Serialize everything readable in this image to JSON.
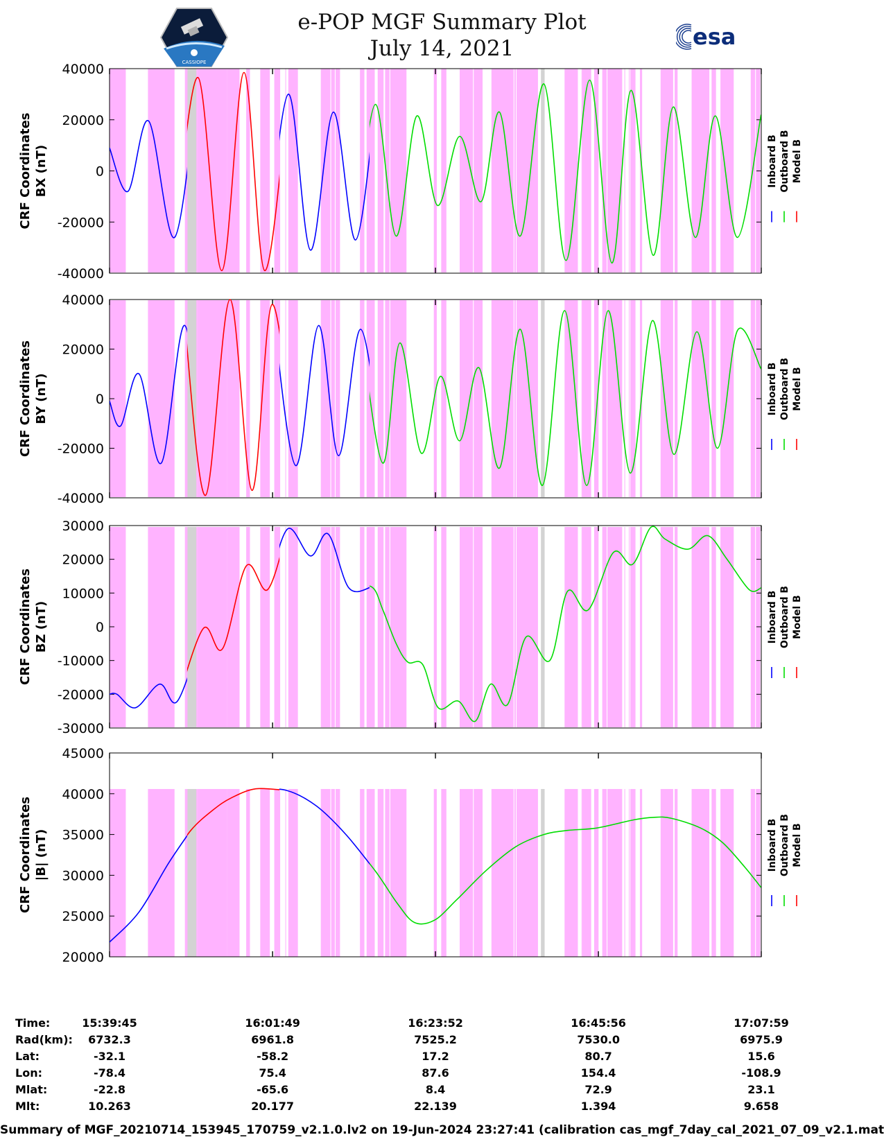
{
  "header": {
    "title_line1": "e-POP MGF Summary Plot",
    "title_line2": "July 14, 2021",
    "esa_logo_text": "esa",
    "cassiope_logo_text": "CASSIOPE"
  },
  "footer": {
    "text": "Summary of MGF_20210714_153945_170759_v2.1.0.lv2 on 19-Jun-2024 23:27:41 (calibration cas_mgf_7day_cal_2021_07_09_v2.1.mat )"
  },
  "colors": {
    "inboard": "#0000ff",
    "outboard": "#00dd00",
    "model": "#ff0000",
    "shade_pink": "#ffb3ff",
    "shade_gray": "#d3d3d3"
  },
  "tick_table": {
    "row_labels": [
      "Time:",
      "Rad(km):",
      "Lat:",
      "Lon:",
      "Mlat:",
      "Mlt:"
    ],
    "columns": [
      [
        "15:39:45",
        "6732.3",
        "-32.1",
        "-78.4",
        "-22.8",
        "10.263"
      ],
      [
        "16:01:49",
        "6961.8",
        "-58.2",
        "75.4",
        "-65.6",
        "20.177"
      ],
      [
        "16:23:52",
        "7525.2",
        "17.2",
        "87.6",
        "8.4",
        "22.139"
      ],
      [
        "16:45:56",
        "7530.0",
        "80.7",
        "154.4",
        "72.9",
        "1.394"
      ],
      [
        "17:07:59",
        "6975.9",
        "15.6",
        "-108.9",
        "23.1",
        "9.658"
      ]
    ]
  },
  "chart_data": [
    {
      "type": "line",
      "title": "CRF Coordinates BX (nT)",
      "ylabel_line1": "CRF Coordinates",
      "ylabel_line2": "BX (nT)",
      "legend": [
        "Inboard B",
        "Outboard B",
        "Model B"
      ],
      "ylim": [
        -40000,
        40000
      ],
      "yticks": [
        40000,
        20000,
        0,
        -20000,
        -40000
      ],
      "ytick_labels": [
        "40000",
        "20000",
        "0",
        "-20000",
        "-40000"
      ],
      "x_minutes": [
        0,
        2.5,
        5.3,
        8.8,
        12.0,
        15.2,
        18.2,
        21.0,
        24.2,
        27.2,
        30.3,
        33.3,
        36.0,
        38.8,
        41.6,
        44.4,
        47.4,
        50.3,
        52.8,
        55.6,
        58.8,
        61.8,
        65.0,
        68.0,
        70.6,
        73.6,
        76.3,
        79.3,
        82.0,
        85.0,
        88.2
      ],
      "values": [
        9000,
        -8000,
        19500,
        -26000,
        36500,
        -39000,
        38500,
        -39000,
        30000,
        -31000,
        23000,
        -27000,
        26000,
        -25500,
        21500,
        -13500,
        13500,
        -12000,
        23000,
        -25500,
        34000,
        -35000,
        35500,
        -36000,
        31500,
        -33000,
        25000,
        -26000,
        21500,
        -26000,
        22000
      ],
      "switch_minutes": [
        10.5,
        23.0,
        35.2
      ]
    },
    {
      "type": "line",
      "title": "CRF Coordinates BY (nT)",
      "ylabel_line1": "CRF Coordinates",
      "ylabel_line2": "BY (nT)",
      "legend": [
        "Inboard B",
        "Outboard B",
        "Model B"
      ],
      "ylim": [
        -40000,
        40000
      ],
      "yticks": [
        40000,
        20000,
        0,
        -20000,
        -40000
      ],
      "ytick_labels": [
        "40000",
        "20000",
        "0",
        "-20000",
        "-40000"
      ],
      "x_minutes": [
        0,
        1.5,
        4.0,
        7.0,
        10.2,
        13.0,
        16.3,
        19.3,
        22.0,
        25.2,
        28.3,
        31.0,
        34.0,
        37.0,
        39.3,
        42.2,
        44.8,
        47.4,
        50.0,
        52.8,
        55.6,
        58.6,
        61.6,
        64.6,
        67.5,
        70.5,
        73.5,
        76.4,
        79.5,
        82.3,
        85.0,
        88.2
      ],
      "values": [
        -1000,
        -11000,
        10000,
        -26000,
        29500,
        -39000,
        40000,
        -37000,
        38000,
        -27000,
        29500,
        -23000,
        28000,
        -26000,
        22500,
        -22000,
        9000,
        -17000,
        12500,
        -28000,
        28000,
        -35000,
        35500,
        -35000,
        35500,
        -30000,
        31500,
        -22500,
        27000,
        -20000,
        27500,
        12000
      ],
      "switch_minutes": [
        10.5,
        23.0,
        35.2
      ]
    },
    {
      "type": "line",
      "title": "CRF Coordinates BZ (nT)",
      "ylabel_line1": "CRF Coordinates",
      "ylabel_line2": "BZ (nT)",
      "legend": [
        "Inboard B",
        "Outboard B",
        "Model B"
      ],
      "ylim": [
        -30000,
        30000
      ],
      "yticks": [
        30000,
        20000,
        10000,
        0,
        -10000,
        -20000,
        -30000
      ],
      "ytick_labels": [
        "30000",
        "20000",
        "10000",
        "0",
        "-10000",
        "-20000",
        "-30000"
      ],
      "x_minutes": [
        0,
        1.0,
        3.5,
        6.8,
        9.2,
        12.7,
        15.3,
        18.5,
        21.4,
        24.1,
        27.2,
        29.6,
        32.4,
        35.5,
        37.0,
        38.8,
        40.4,
        42.4,
        44.5,
        47.2,
        49.5,
        51.6,
        53.9,
        56.4,
        59.6,
        62.0,
        64.8,
        68.2,
        70.8,
        73.3,
        75.2,
        78.3,
        81.0,
        83.6,
        86.6,
        88.2
      ],
      "values": [
        -20000,
        -20000,
        -24000,
        -17000,
        -22000,
        -500,
        -6500,
        18000,
        11000,
        29000,
        21000,
        27500,
        11500,
        11800,
        5000,
        -5000,
        -10500,
        -11200,
        -24000,
        -22000,
        -28000,
        -17000,
        -23000,
        -3000,
        -10000,
        10500,
        5000,
        22000,
        18500,
        29500,
        26000,
        23000,
        27000,
        20000,
        11000,
        11500
      ],
      "switch_minutes": [
        10.5,
        23.0,
        35.2
      ]
    },
    {
      "type": "line",
      "title": "CRF Coordinates |B| (nT)",
      "ylabel_line1": "CRF Coordinates",
      "ylabel_line2": "|B| (nT)",
      "legend": [
        "Inboard B",
        "Outboard B",
        "Model B"
      ],
      "ylim": [
        20000,
        45000
      ],
      "yticks": [
        45000,
        40000,
        35000,
        30000,
        25000,
        20000
      ],
      "ytick_labels": [
        "45000",
        "40000",
        "35000",
        "30000",
        "25000",
        "20000"
      ],
      "x_minutes": [
        0,
        4.0,
        8.0,
        11.0,
        14.0,
        16.5,
        19.8,
        24.0,
        28.0,
        32.0,
        36.0,
        39.0,
        41.3,
        44.0,
        47.0,
        51.0,
        55.0,
        58.8,
        62.0,
        66.0,
        71.0,
        73.6,
        76.0,
        80.0,
        83.0,
        86.0,
        88.2
      ],
      "values": [
        21800,
        25500,
        31500,
        35500,
        38000,
        39500,
        40600,
        40400,
        38500,
        35000,
        30500,
        26500,
        24200,
        24500,
        27000,
        30600,
        33500,
        35000,
        35500,
        35800,
        36800,
        37100,
        37000,
        35800,
        34000,
        31000,
        28500
      ],
      "switch_minutes": [
        10.5,
        23.0,
        35.2
      ]
    }
  ],
  "shading": {
    "x_range_minutes": [
      0,
      88.23
    ],
    "pink_intervals": [
      [
        0,
        2.2
      ],
      [
        5.2,
        8.8
      ],
      [
        10.2,
        11.9
      ],
      [
        11.9,
        15.9
      ],
      [
        15.9,
        17.6
      ],
      [
        18.5,
        19.0
      ],
      [
        18.9,
        18.95
      ],
      [
        20.4,
        21.7
      ],
      [
        22.3,
        23.1
      ],
      [
        23.8,
        23.9
      ],
      [
        24.2,
        25.5
      ],
      [
        28.6,
        29.1
      ],
      [
        28.9,
        29.9
      ],
      [
        30.0,
        30.5
      ],
      [
        30.6,
        31.2
      ],
      [
        33.9,
        34.5
      ],
      [
        34.8,
        35.9
      ],
      [
        36.3,
        36.6
      ],
      [
        36.6,
        37.1
      ],
      [
        37.3,
        37.9
      ],
      [
        38.0,
        40.2
      ],
      [
        43.9,
        44.3
      ],
      [
        44.9,
        45.6
      ],
      [
        47.4,
        49.2
      ],
      [
        49.3,
        50.5
      ],
      [
        51.7,
        54.7
      ],
      [
        54.8,
        55.0
      ],
      [
        55.1,
        58.0
      ],
      [
        61.6,
        63.4
      ],
      [
        63.9,
        64.0
      ],
      [
        64.0,
        65.2
      ],
      [
        65.6,
        66.2
      ],
      [
        66.7,
        67.3
      ],
      [
        67.4,
        69.4
      ],
      [
        69.7,
        69.8
      ],
      [
        70.3,
        70.4
      ],
      [
        70.5,
        71.2
      ],
      [
        71.8,
        72.1
      ],
      [
        74.6,
        76.3
      ],
      [
        76.5,
        76.9
      ],
      [
        78.8,
        81.2
      ],
      [
        81.5,
        82.1
      ],
      [
        82.7,
        84.5
      ],
      [
        86.8,
        87.4
      ],
      [
        87.5,
        88.1
      ]
    ],
    "gray_intervals": [
      [
        10.55,
        11.75
      ],
      [
        58.4,
        58.9
      ]
    ]
  }
}
